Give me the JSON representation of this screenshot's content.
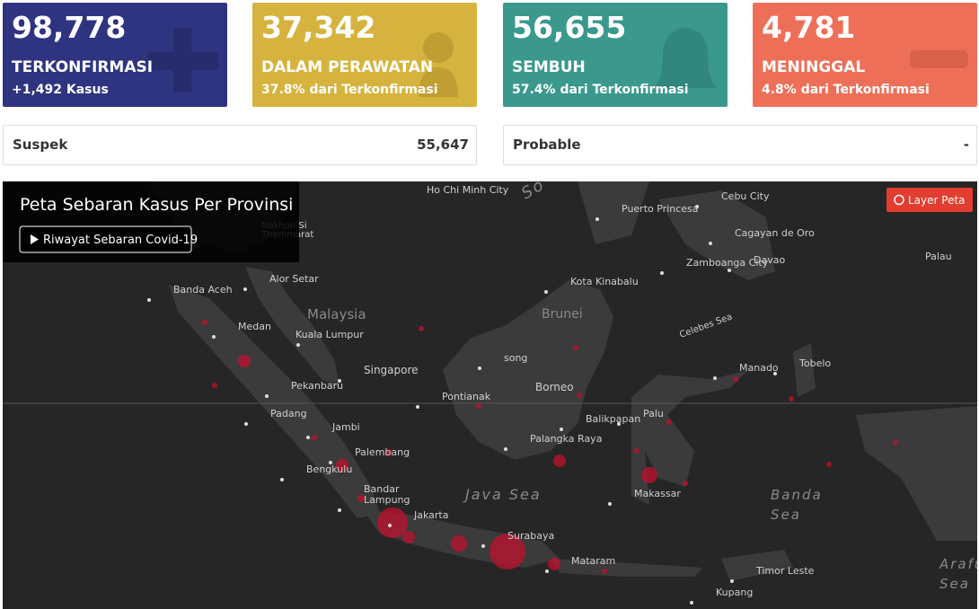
{
  "cards": [
    {
      "value": "98,778",
      "label": "TERKONFIRMASI",
      "sub": "+1,492 Kasus"
    },
    {
      "value": "37,342",
      "label": "DALAM PERAWATAN",
      "sub": "37.8% dari Terkonfirmasi"
    },
    {
      "value": "56,655",
      "label": "SEMBUH",
      "sub": "57.4% dari Terkonfirmasi"
    },
    {
      "value": "4,781",
      "label": "MENINGGAL",
      "sub": "4.8% dari Terkonfirmasi"
    }
  ],
  "stats": [
    {
      "label": "Suspek",
      "value": "55,647"
    },
    {
      "label": "Probable",
      "value": "-"
    }
  ],
  "map": {
    "title": "Peta Sebaran Kasus Per Provinsi",
    "history_button": "Riwayat Sebaran Covid-19",
    "layer_button": "Layer Peta",
    "places": [
      "Ho Chi Minh City",
      "Cebu City",
      "Puerto Princesa",
      "Nakhon Si",
      "Thammarat",
      "Cagayan de Oro",
      "Zamboanga City",
      "Davao",
      "Palau",
      "Banda Aceh",
      "Alor Setar",
      "Kota Kinabalu",
      "Malaysia",
      "Brunei",
      "Medan",
      "Kuala Lumpur",
      "Celebes Sea",
      "song",
      "Singapore",
      "Manado",
      "Tobelo",
      "Pekanbaru",
      "Borneo",
      "Pontianak",
      "Padang",
      "Palu",
      "Balikpapan",
      "Jambi",
      "Palangka Raya",
      "Palembang",
      "Bengkulu",
      "Bandar",
      "Lampung",
      "Makassar",
      "Banda",
      "Sea",
      "Java Sea",
      "Jakarta",
      "Surabaya",
      "Mataram",
      "Arafura",
      "Sea",
      "Timor Leste",
      "Kupang",
      "So"
    ]
  }
}
